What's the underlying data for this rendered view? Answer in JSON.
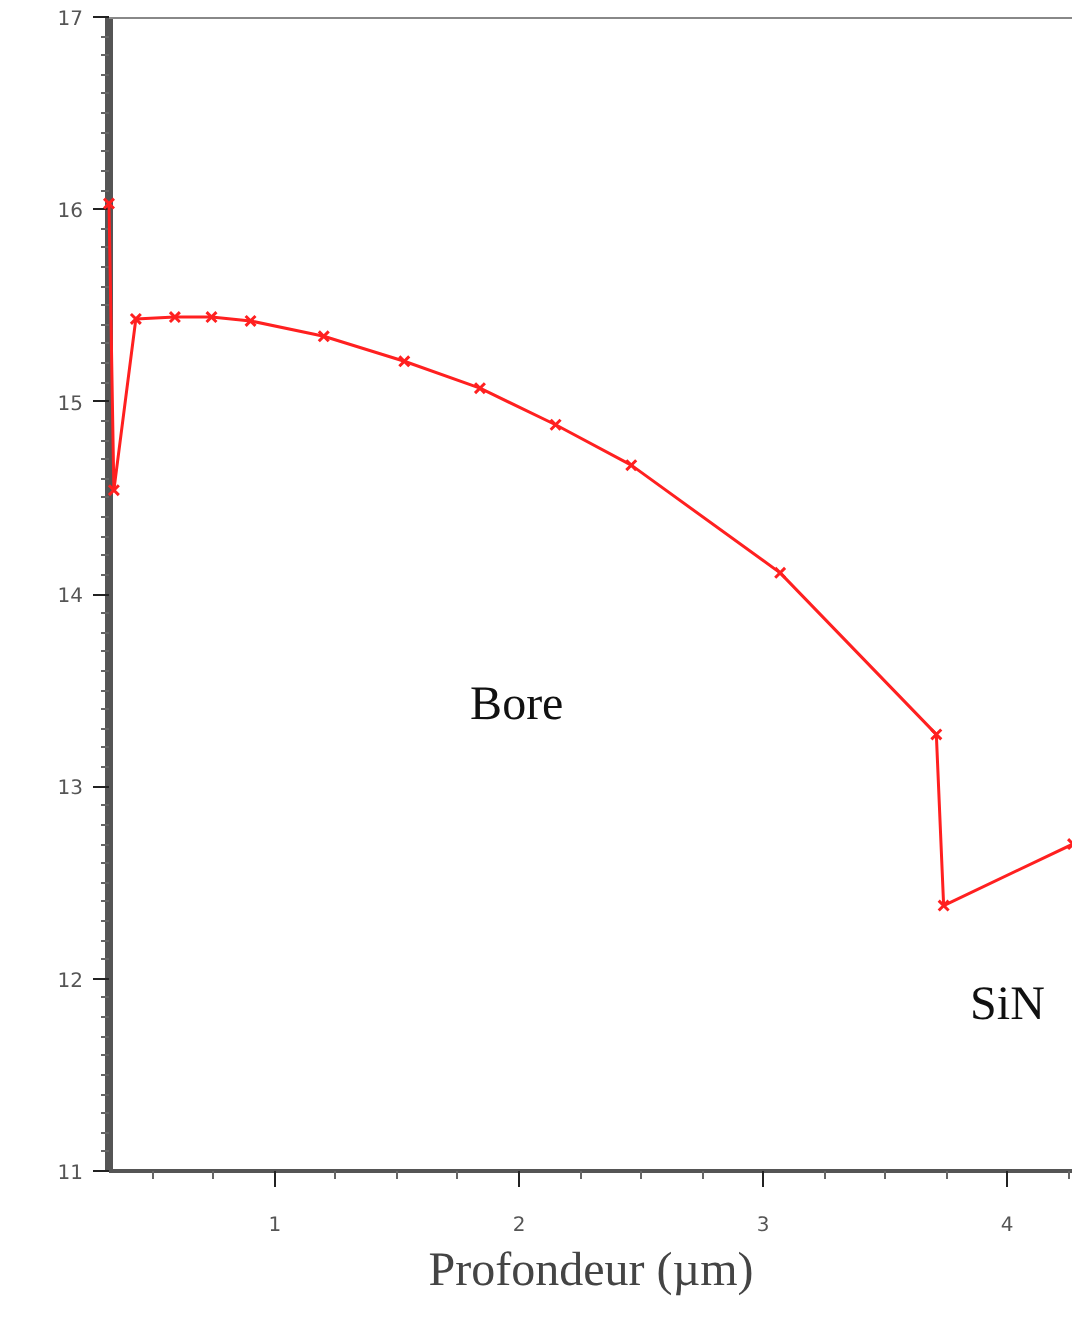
{
  "chart_data": {
    "type": "line",
    "xlabel": "Profondeur (µm)",
    "x": [
      0.32,
      0.34,
      0.43,
      0.59,
      0.74,
      0.9,
      1.2,
      1.53,
      1.84,
      2.15,
      2.46,
      3.07,
      3.71,
      3.74,
      4.27
    ],
    "series": [
      {
        "color": "#ff2020",
        "values": [
          16.03,
          14.54,
          15.43,
          15.44,
          15.44,
          15.42,
          15.34,
          15.21,
          15.07,
          14.88,
          14.67,
          14.11,
          13.27,
          12.38,
          12.7
        ]
      }
    ],
    "xlim": [
      0.32,
      4.27
    ],
    "ylim": [
      11,
      17
    ],
    "xticks": [
      1,
      2,
      3,
      4
    ],
    "yticks": [
      11,
      12,
      13,
      14,
      15,
      16,
      17
    ],
    "marker": "cross",
    "line_style": "solid",
    "grid": false,
    "annotations": [
      "Bore",
      "SiN"
    ]
  }
}
